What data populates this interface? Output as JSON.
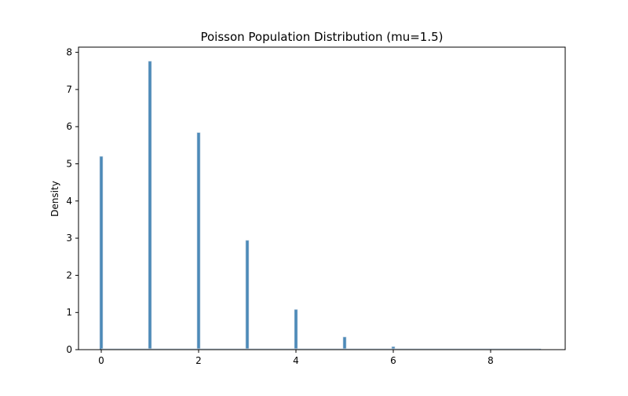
{
  "chart_data": {
    "type": "bar",
    "title": "Poisson Population Distribution (mu=1.5)",
    "xlabel": "",
    "ylabel": "Density",
    "categories": [
      0,
      1,
      2,
      3,
      4,
      5,
      6,
      7,
      8,
      9
    ],
    "values": [
      5.2,
      7.76,
      5.84,
      2.94,
      1.08,
      0.34,
      0.08,
      0.02,
      0.0,
      0.0
    ],
    "xlim": [
      -0.47,
      9.47
    ],
    "ylim": [
      0,
      8.14
    ],
    "xticks": [
      0,
      2,
      4,
      6,
      8
    ],
    "yticks": [
      0,
      1,
      2,
      3,
      4,
      5,
      6,
      7,
      8
    ],
    "grid": false,
    "legend": null,
    "bar_color": "#4c8ab8",
    "bar_edge_color": "#c8d6e3"
  }
}
